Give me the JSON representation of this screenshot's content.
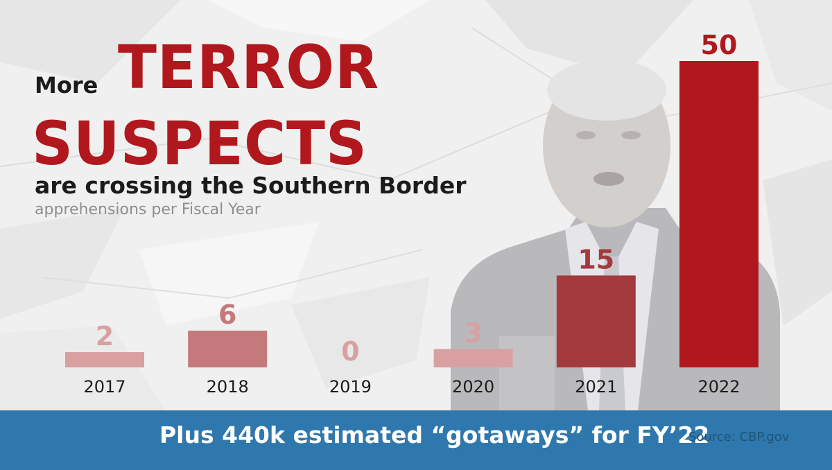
{
  "headline": {
    "lead": "More",
    "emphasis_line1": "TERROR",
    "emphasis_line2": "SUSPECTS",
    "subline": "are crossing the Southern Border",
    "note": "apprehensions per Fiscal Year"
  },
  "banner": {
    "text": "Plus 440k estimated “gotaways” for FY’22",
    "source": "Source: CBP.gov"
  },
  "colors": {
    "accent_red": "#b0181d",
    "banner_blue": "#2f78ad",
    "bar_colors": [
      "#d9a0a2",
      "#c47a7c",
      "#d9a0a2",
      "#d9a0a2",
      "#a33a3e",
      "#b0181d"
    ],
    "label_colors": [
      "#d9a0a2",
      "#c47a7c",
      "#d9a0a2",
      "#d9a0a2",
      "#a33a3e",
      "#b0181d"
    ]
  },
  "chart_data": {
    "type": "bar",
    "categories": [
      "2017",
      "2018",
      "2019",
      "2020",
      "2021",
      "2022"
    ],
    "values": [
      2,
      6,
      0,
      3,
      15,
      50
    ],
    "title": "",
    "xlabel": "",
    "ylabel": "",
    "ylim": [
      0,
      50
    ],
    "grid": false,
    "data_labels": true
  }
}
